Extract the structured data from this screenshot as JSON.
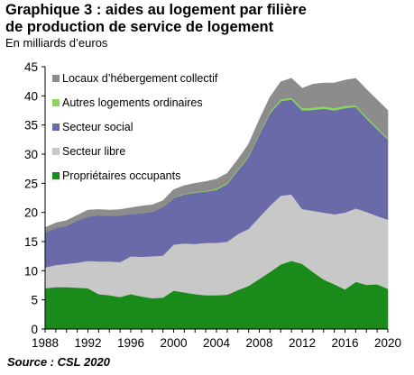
{
  "title_line1": "Graphique 3 : aides au logement par filière",
  "title_line2": "de production de service de logement",
  "subtitle": "En milliards d’euros",
  "source": "Source : CSL 2020",
  "chart_data": {
    "type": "area",
    "stacked": true,
    "x": [
      1988,
      1989,
      1990,
      1991,
      1992,
      1993,
      1994,
      1995,
      1996,
      1997,
      1998,
      1999,
      2000,
      2001,
      2002,
      2003,
      2004,
      2005,
      2006,
      2007,
      2008,
      2009,
      2010,
      2011,
      2012,
      2013,
      2014,
      2015,
      2016,
      2017,
      2018,
      2019,
      2020
    ],
    "series": [
      {
        "name": "Propriétaires occupants",
        "color": "#1a8a1a",
        "values": [
          7.0,
          7.2,
          7.2,
          7.1,
          7.0,
          6.0,
          5.8,
          5.5,
          6.0,
          5.6,
          5.3,
          5.4,
          6.6,
          6.3,
          6.0,
          5.8,
          5.8,
          5.9,
          6.7,
          7.4,
          8.6,
          9.8,
          11.1,
          11.7,
          11.2,
          9.8,
          8.5,
          7.7,
          6.8,
          8.1,
          7.6,
          7.7,
          6.9
        ]
      },
      {
        "name": "Secteur libre",
        "color": "#c8c8c8",
        "values": [
          3.6,
          3.8,
          4.0,
          4.3,
          4.7,
          5.6,
          5.8,
          6.0,
          6.5,
          6.8,
          7.2,
          7.2,
          7.9,
          8.4,
          8.6,
          9.0,
          9.0,
          9.1,
          9.6,
          9.8,
          10.6,
          11.4,
          11.8,
          11.4,
          9.4,
          10.5,
          11.5,
          12.0,
          13.2,
          12.6,
          12.5,
          11.7,
          11.9
        ]
      },
      {
        "name": "Secteur social",
        "color": "#6a6aa8",
        "values": [
          6.0,
          6.3,
          6.5,
          7.2,
          7.6,
          7.9,
          7.9,
          8.0,
          7.2,
          7.5,
          7.6,
          8.3,
          8.0,
          8.4,
          8.8,
          8.8,
          9.1,
          9.9,
          10.9,
          12.3,
          14.2,
          15.8,
          16.2,
          16.3,
          16.9,
          17.3,
          17.8,
          17.8,
          17.9,
          17.4,
          16.0,
          14.9,
          13.7
        ]
      },
      {
        "name": "Autres logements ordinaires",
        "color": "#8cd65a",
        "values": [
          0.0,
          0.0,
          0.0,
          0.0,
          0.0,
          0.0,
          0.0,
          0.0,
          0.0,
          0.0,
          0.0,
          0.0,
          0.1,
          0.1,
          0.1,
          0.1,
          0.2,
          0.2,
          0.2,
          0.2,
          0.2,
          0.3,
          0.3,
          0.3,
          0.4,
          0.4,
          0.4,
          0.4,
          0.4,
          0.3,
          0.3,
          0.3,
          0.2
        ]
      },
      {
        "name": "Locaux d’hébergement collectif",
        "color": "#8c8c8c",
        "values": [
          0.8,
          0.9,
          0.9,
          0.9,
          1.1,
          1.0,
          0.9,
          1.0,
          1.1,
          1.2,
          1.2,
          1.1,
          1.3,
          1.4,
          1.5,
          1.6,
          1.6,
          1.6,
          1.7,
          2.0,
          2.3,
          2.5,
          3.0,
          3.3,
          3.4,
          4.0,
          4.0,
          4.3,
          4.4,
          4.6,
          4.7,
          4.7,
          4.8
        ]
      }
    ],
    "xticks": [
      "1988",
      "1992",
      "1996",
      "2000",
      "2004",
      "2008",
      "2012",
      "2016",
      "2020"
    ],
    "yticks": [
      "0",
      "5",
      "10",
      "15",
      "20",
      "25",
      "30",
      "35",
      "40",
      "45"
    ],
    "xlim": [
      1988,
      2020
    ],
    "ylim": [
      0,
      45
    ],
    "legend_placement": "top-left",
    "grid": false
  }
}
